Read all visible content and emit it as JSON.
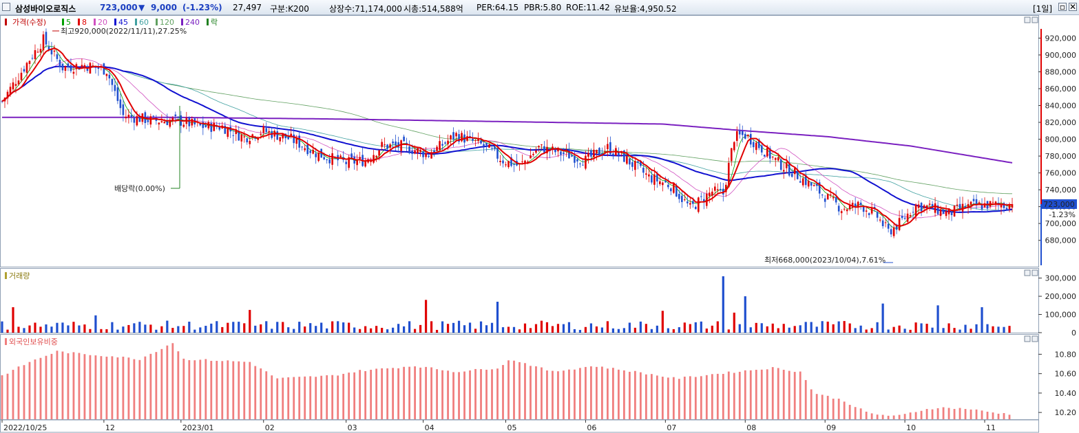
{
  "header": {
    "stock_name": "삼성바이오로직스",
    "price": "723,000",
    "change_arrow": "▼",
    "change": "9,000",
    "change_pct": "(-1.23%)",
    "volume": "27,497",
    "classification": "구분:K200",
    "listed_shares": "상장수:71,174,000",
    "market_cap": "시총:514,588억",
    "per": "PER:64.15",
    "pbr": "PBR:5.80",
    "roe": "ROE:11.42",
    "reserve_ratio": "유보율:4,950.52",
    "period_button": "[1일]"
  },
  "colors": {
    "up": "#e00000",
    "down": "#1f4fcf",
    "ma5": "#00a000",
    "ma8": "#e00000",
    "ma20": "#d050c0",
    "ma45": "#1010d0",
    "ma60": "#40a0a0",
    "ma120": "#60a060",
    "ma240": "#7a20c0",
    "foreign": "#f07e7e"
  },
  "chart_data": [
    {
      "type": "candlestick",
      "title": "가격(수정)",
      "legend": [
        "5",
        "8",
        "20",
        "45",
        "60",
        "120",
        "240",
        "락"
      ],
      "x_tick_labels": [
        "2022/10/25",
        "12",
        "2023/01",
        "02",
        "03",
        "04",
        "05",
        "06",
        "07",
        "08",
        "09",
        "10",
        "11"
      ],
      "y_ticks": [
        680000,
        700000,
        720000,
        740000,
        760000,
        780000,
        800000,
        820000,
        840000,
        860000,
        880000,
        900000,
        920000
      ],
      "y_tick_labels": [
        "680,000",
        "700,000",
        "720,000",
        "740,000",
        "760,000",
        "780,000",
        "800,000",
        "820,000",
        "840,000",
        "860,000",
        "880,000",
        "900,000",
        "920,000"
      ],
      "ylim": [
        652000,
        944000
      ],
      "close_anchors": [
        [
          0,
          845000
        ],
        [
          10,
          895000
        ],
        [
          15,
          918000
        ],
        [
          22,
          885000
        ],
        [
          30,
          888000
        ],
        [
          38,
          882000
        ],
        [
          44,
          828000
        ],
        [
          55,
          822000
        ],
        [
          64,
          822000
        ],
        [
          72,
          815000
        ],
        [
          80,
          815000
        ],
        [
          88,
          802000
        ],
        [
          95,
          810000
        ],
        [
          105,
          800000
        ],
        [
          115,
          782000
        ],
        [
          125,
          772000
        ],
        [
          132,
          775000
        ],
        [
          138,
          792000
        ],
        [
          145,
          792000
        ],
        [
          155,
          782000
        ],
        [
          165,
          805000
        ],
        [
          175,
          792000
        ],
        [
          182,
          775000
        ],
        [
          188,
          768000
        ],
        [
          195,
          790000
        ],
        [
          205,
          782000
        ],
        [
          212,
          775000
        ],
        [
          220,
          790000
        ],
        [
          226,
          778000
        ],
        [
          235,
          755000
        ],
        [
          243,
          745000
        ],
        [
          250,
          718000
        ],
        [
          258,
          738000
        ],
        [
          262,
          735000
        ],
        [
          266,
          802000
        ],
        [
          270,
          805000
        ],
        [
          275,
          792000
        ],
        [
          282,
          772000
        ],
        [
          290,
          755000
        ],
        [
          300,
          730000
        ],
        [
          305,
          718000
        ],
        [
          312,
          722000
        ],
        [
          318,
          708000
        ],
        [
          322,
          690000
        ],
        [
          326,
          700000
        ],
        [
          332,
          722000
        ],
        [
          338,
          718000
        ],
        [
          344,
          712000
        ],
        [
          350,
          720000
        ],
        [
          358,
          722000
        ],
        [
          364,
          722000
        ],
        [
          367,
          723000
        ]
      ],
      "last_close": 723000,
      "last_change_pct": "-1.23%",
      "annotations": {
        "high": "최고920,000(2022/11/11),27.25%",
        "low": "최저668,000(2023/10/04),7.61%",
        "dividend": "배당락(0.00%)"
      },
      "ma240_anchors": [
        [
          0,
          826000
        ],
        [
          60,
          826000
        ],
        [
          120,
          824000
        ],
        [
          180,
          821000
        ],
        [
          240,
          818000
        ],
        [
          270,
          810000
        ],
        [
          300,
          803000
        ],
        [
          330,
          792000
        ],
        [
          367,
          772000
        ]
      ]
    },
    {
      "type": "bar",
      "title": "거래량",
      "y_ticks": [
        0,
        100000,
        200000,
        300000
      ],
      "y_tick_labels": [
        "0",
        "100,000",
        "200,000",
        "300,000"
      ],
      "ylim": [
        0,
        340000
      ],
      "base_volume": 60000,
      "spikes": [
        [
          5,
          140000
        ],
        [
          34,
          95000
        ],
        [
          90,
          125000
        ],
        [
          155,
          180000
        ],
        [
          180,
          170000
        ],
        [
          240,
          120000
        ],
        [
          262,
          310000
        ],
        [
          266,
          110000
        ],
        [
          270,
          200000
        ],
        [
          321,
          160000
        ],
        [
          340,
          150000
        ],
        [
          356,
          140000
        ]
      ]
    },
    {
      "type": "bar",
      "title": "외국인보유비중",
      "y_ticks": [
        10.2,
        10.4,
        10.6,
        10.8
      ],
      "y_tick_labels": [
        "10.20",
        "10.40",
        "10.60",
        "10.80"
      ],
      "ylim": [
        10.13,
        10.98
      ],
      "anchors": [
        [
          0,
          10.58
        ],
        [
          10,
          10.72
        ],
        [
          20,
          10.83
        ],
        [
          30,
          10.8
        ],
        [
          40,
          10.78
        ],
        [
          50,
          10.75
        ],
        [
          58,
          10.86
        ],
        [
          62,
          10.92
        ],
        [
          66,
          10.75
        ],
        [
          75,
          10.74
        ],
        [
          90,
          10.72
        ],
        [
          100,
          10.55
        ],
        [
          120,
          10.58
        ],
        [
          130,
          10.63
        ],
        [
          150,
          10.68
        ],
        [
          165,
          10.62
        ],
        [
          180,
          10.66
        ],
        [
          185,
          10.75
        ],
        [
          200,
          10.62
        ],
        [
          215,
          10.68
        ],
        [
          230,
          10.62
        ],
        [
          245,
          10.55
        ],
        [
          260,
          10.6
        ],
        [
          280,
          10.66
        ],
        [
          290,
          10.62
        ],
        [
          295,
          10.4
        ],
        [
          305,
          10.33
        ],
        [
          315,
          10.19
        ],
        [
          325,
          10.16
        ],
        [
          335,
          10.23
        ],
        [
          340,
          10.25
        ],
        [
          350,
          10.24
        ],
        [
          360,
          10.2
        ],
        [
          367,
          10.18
        ]
      ]
    }
  ]
}
